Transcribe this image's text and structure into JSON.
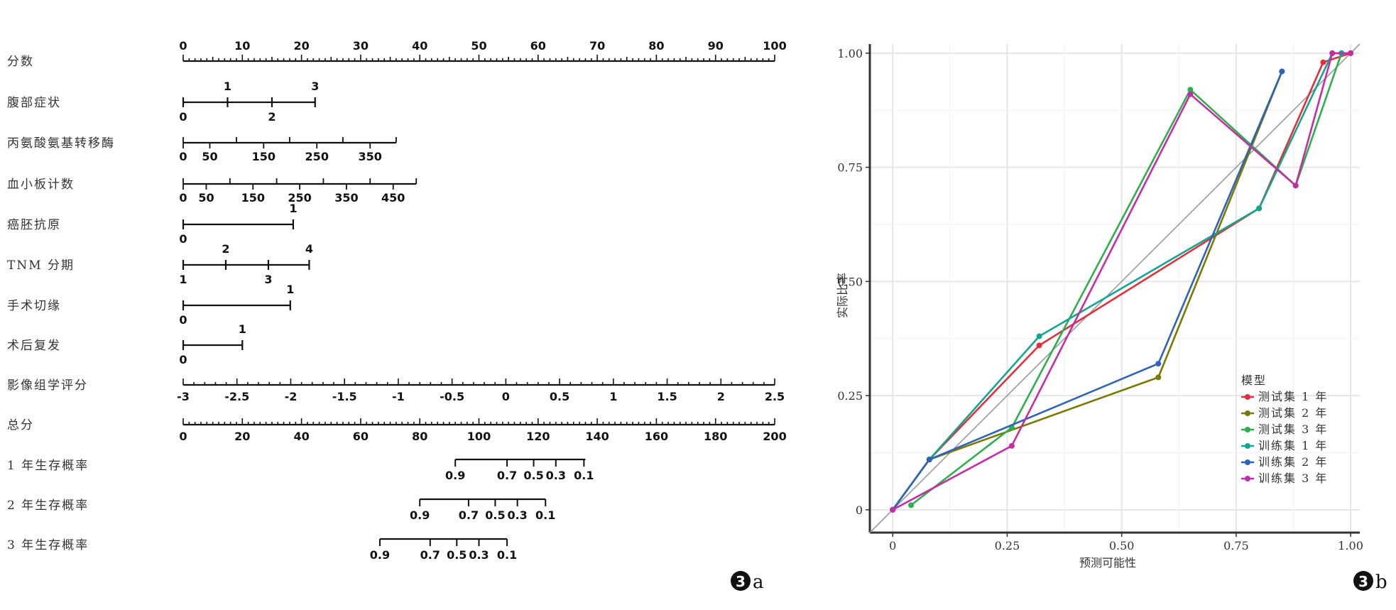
{
  "chart_data": [
    {
      "type": "nomogram",
      "panel_label": "a",
      "rows": [
        {
          "label": "分数",
          "kind": "points",
          "range": [
            0,
            100
          ],
          "labeled_ticks": [
            0,
            10,
            20,
            30,
            40,
            50,
            60,
            70,
            80,
            90,
            100
          ],
          "labels_above": [
            "0",
            "10",
            "20",
            "30",
            "40",
            "50",
            "60",
            "70",
            "80",
            "90",
            "100"
          ]
        },
        {
          "label": "腹部症状",
          "kind": "categorical",
          "above": [
            {
              "text": "1",
              "points": 7.5
            },
            {
              "text": "3",
              "points": 22.3
            }
          ],
          "below": [
            {
              "text": "0",
              "points": 0
            },
            {
              "text": "2",
              "points": 15
            }
          ],
          "end_points": 22.3
        },
        {
          "label": "丙氨酸氨基转移酶",
          "kind": "continuous",
          "end_points": 36,
          "ticks": [
            {
              "v": "0",
              "points": 0
            },
            {
              "v": "50",
              "points": 4.5
            },
            {
              "v": "150",
              "points": 13.6
            },
            {
              "v": "250",
              "points": 22.6
            },
            {
              "v": "350",
              "points": 31.6
            }
          ],
          "minor_points": [
            0,
            9,
            18,
            27,
            36
          ]
        },
        {
          "label": "血小板计数",
          "kind": "continuous",
          "end_points": 39.4,
          "ticks": [
            {
              "v": "0",
              "points": 0
            },
            {
              "v": "50",
              "points": 3.9
            },
            {
              "v": "150",
              "points": 11.8
            },
            {
              "v": "250",
              "points": 19.7
            },
            {
              "v": "350",
              "points": 27.6
            },
            {
              "v": "450",
              "points": 35.5
            }
          ],
          "minor_points": [
            0,
            7.9,
            15.8,
            23.7,
            31.6,
            39.4
          ]
        },
        {
          "label": "癌胚抗原",
          "kind": "categorical",
          "above": [
            {
              "text": "1",
              "points": 18.6
            }
          ],
          "below": [
            {
              "text": "0",
              "points": 0
            }
          ],
          "end_points": 18.6
        },
        {
          "label": "TNM 分期",
          "kind": "categorical",
          "above": [
            {
              "text": "2",
              "points": 7.2
            },
            {
              "text": "4",
              "points": 21.3
            }
          ],
          "below": [
            {
              "text": "1",
              "points": 0
            },
            {
              "text": "3",
              "points": 14.4
            }
          ],
          "end_points": 21.3
        },
        {
          "label": "手术切缘",
          "kind": "categorical",
          "above": [
            {
              "text": "1",
              "points": 18.1
            }
          ],
          "below": [
            {
              "text": "0",
              "points": 0
            }
          ],
          "end_points": 18.1
        },
        {
          "label": "术后复发",
          "kind": "categorical",
          "above": [
            {
              "text": "1",
              "points": 10
            }
          ],
          "below": [
            {
              "text": "0",
              "points": 0
            }
          ],
          "end_points": 10
        },
        {
          "label": "影像组学评分",
          "kind": "scale",
          "range": [
            -3,
            2.5
          ],
          "labels_below": [
            "-3",
            "-2.5",
            "-2",
            "-1.5",
            "-1",
            "-0.5",
            "0",
            "0.5",
            "1",
            "1.5",
            "2",
            "2.5"
          ]
        },
        {
          "label": "总分",
          "kind": "total",
          "range": [
            0,
            200
          ],
          "labels_below": [
            "0",
            "20",
            "40",
            "60",
            "80",
            "100",
            "120",
            "140",
            "160",
            "180",
            "200"
          ]
        },
        {
          "label": "1 年生存概率",
          "kind": "probability",
          "labels_below": [
            {
              "text": "0.9",
              "total": 92
            },
            {
              "text": "0.7",
              "total": 109.5
            },
            {
              "text": "0.5",
              "total": 118.5
            },
            {
              "text": "0.3",
              "total": 126
            },
            {
              "text": "0.1",
              "total": 135.5
            }
          ],
          "span_total": [
            92,
            136
          ]
        },
        {
          "label": "2 年生存概率",
          "kind": "probability",
          "labels_below": [
            {
              "text": "0.9",
              "total": 80
            },
            {
              "text": "0.7",
              "total": 96.5
            },
            {
              "text": "0.5",
              "total": 105.5
            },
            {
              "text": "0.3",
              "total": 113
            },
            {
              "text": "0.1",
              "total": 122.5
            }
          ],
          "span_total": [
            80,
            122.5
          ]
        },
        {
          "label": "3 年生存概率",
          "kind": "probability",
          "labels_below": [
            {
              "text": "0.9",
              "total": 66.5
            },
            {
              "text": "0.7",
              "total": 83.5
            },
            {
              "text": "0.5",
              "total": 92.5
            },
            {
              "text": "0.3",
              "total": 100
            },
            {
              "text": "0.1",
              "total": 109.5
            }
          ],
          "span_total": [
            66.5,
            109.5
          ]
        }
      ]
    },
    {
      "type": "line",
      "panel_label": "b",
      "xlabel": "预测可能性",
      "ylabel": "实际比率",
      "xlim": [
        -0.05,
        1.02
      ],
      "ylim": [
        -0.05,
        1.02
      ],
      "xticks": [
        "0",
        "0.25",
        "0.50",
        "0.75",
        "1.00"
      ],
      "yticks": [
        "0",
        "0.25",
        "0.50",
        "0.75",
        "1.00"
      ],
      "grid": true,
      "diagonal_reference": true,
      "legend_title": "模型",
      "legend_position": "bottom-right",
      "series": [
        {
          "name": "测试集 1 年",
          "color": "#e0303a",
          "points": [
            [
              0.0,
              0.0
            ],
            [
              0.08,
              0.11
            ],
            [
              0.32,
              0.36
            ],
            [
              0.8,
              0.66
            ],
            [
              0.94,
              0.98
            ],
            [
              1.0,
              1.0
            ]
          ]
        },
        {
          "name": "测试集 2 年",
          "color": "#7a7a00",
          "points": [
            [
              0.0,
              0.0
            ],
            [
              0.08,
              0.11
            ],
            [
              0.58,
              0.29
            ],
            [
              0.85,
              0.96
            ]
          ]
        },
        {
          "name": "测试集 3 年",
          "color": "#2fae4e",
          "points": [
            [
              0.04,
              0.01
            ],
            [
              0.26,
              0.18
            ],
            [
              0.65,
              0.92
            ],
            [
              0.88,
              0.71
            ],
            [
              0.98,
              1.0
            ]
          ]
        },
        {
          "name": "训练集 1 年",
          "color": "#14a58f",
          "points": [
            [
              0.0,
              0.0
            ],
            [
              0.08,
              0.11
            ],
            [
              0.32,
              0.38
            ],
            [
              0.8,
              0.66
            ],
            [
              0.96,
              1.0
            ],
            [
              0.98,
              1.0
            ]
          ]
        },
        {
          "name": "训练集 2 年",
          "color": "#2d64b8",
          "points": [
            [
              0.0,
              0.0
            ],
            [
              0.08,
              0.11
            ],
            [
              0.58,
              0.32
            ],
            [
              0.85,
              0.96
            ]
          ]
        },
        {
          "name": "训练集 3 年",
          "color": "#c32ea7",
          "points": [
            [
              0.0,
              0.0
            ],
            [
              0.26,
              0.14
            ],
            [
              0.65,
              0.91
            ],
            [
              0.88,
              0.71
            ],
            [
              0.96,
              1.0
            ],
            [
              1.0,
              1.0
            ]
          ]
        }
      ]
    }
  ]
}
